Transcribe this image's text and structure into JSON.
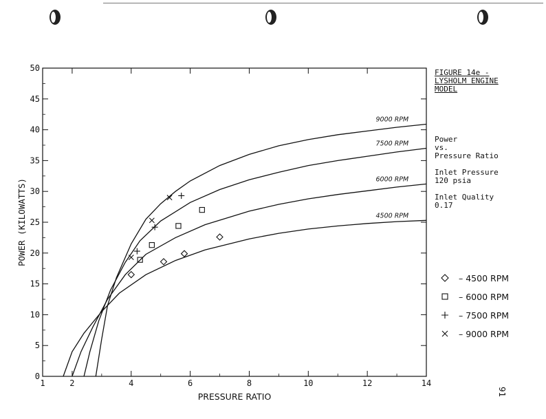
{
  "page": {
    "figure_title": "FIGURE 14e -\nLYSHOLM ENGINE\nMODEL",
    "description": "Power\nvs.\nPressure Ratio",
    "inlet_pressure": "Inlet Pressure\n120 psia",
    "inlet_quality": "Inlet Quality\n0.17",
    "page_number": "91"
  },
  "colors": {
    "ink": "#111111",
    "paper": "#ffffff"
  },
  "chart_data": {
    "type": "line",
    "xlabel": "PRESSURE RATIO",
    "ylabel": "POWER (KILOWATTS)",
    "xlim": [
      1,
      14
    ],
    "ylim": [
      0,
      50
    ],
    "x_ticks": [
      1,
      2,
      4,
      6,
      8,
      10,
      12,
      14
    ],
    "y_ticks": [
      0,
      5,
      10,
      15,
      20,
      25,
      30,
      35,
      40,
      45,
      50
    ],
    "grid": false,
    "curves": [
      {
        "label": "9000 RPM",
        "points": [
          [
            2.8,
            0
          ],
          [
            3.0,
            6
          ],
          [
            3.2,
            11.5
          ],
          [
            3.5,
            16
          ],
          [
            4.0,
            21.5
          ],
          [
            4.5,
            25.5
          ],
          [
            5.0,
            28
          ],
          [
            5.5,
            30
          ],
          [
            6,
            31.7
          ],
          [
            7,
            34.2
          ],
          [
            8,
            36
          ],
          [
            9,
            37.4
          ],
          [
            10,
            38.4
          ],
          [
            11,
            39.2
          ],
          [
            12,
            39.8
          ],
          [
            13,
            40.4
          ],
          [
            14,
            40.9
          ]
        ]
      },
      {
        "label": "7500 RPM",
        "points": [
          [
            2.4,
            0
          ],
          [
            2.6,
            4
          ],
          [
            2.9,
            9
          ],
          [
            3.3,
            14
          ],
          [
            3.8,
            18.5
          ],
          [
            4.3,
            22
          ],
          [
            5,
            25.2
          ],
          [
            6,
            28.2
          ],
          [
            7,
            30.3
          ],
          [
            8,
            31.9
          ],
          [
            9,
            33.1
          ],
          [
            10,
            34.2
          ],
          [
            11,
            35
          ],
          [
            12,
            35.7
          ],
          [
            13,
            36.4
          ],
          [
            14,
            37
          ]
        ]
      },
      {
        "label": "6000 RPM",
        "points": [
          [
            2.0,
            0
          ],
          [
            2.3,
            4
          ],
          [
            2.7,
            8
          ],
          [
            3.2,
            12.5
          ],
          [
            3.8,
            16.5
          ],
          [
            4.5,
            19.8
          ],
          [
            5.5,
            22.5
          ],
          [
            6.5,
            24.6
          ],
          [
            8,
            26.8
          ],
          [
            9,
            27.9
          ],
          [
            10,
            28.8
          ],
          [
            11,
            29.5
          ],
          [
            12,
            30.1
          ],
          [
            13,
            30.7
          ],
          [
            14,
            31.2
          ]
        ]
      },
      {
        "label": "4500 RPM",
        "points": [
          [
            1.7,
            0
          ],
          [
            2.0,
            4
          ],
          [
            2.4,
            7
          ],
          [
            3.0,
            10.5
          ],
          [
            3.6,
            13.5
          ],
          [
            4.5,
            16.5
          ],
          [
            5.5,
            18.8
          ],
          [
            6.5,
            20.5
          ],
          [
            8,
            22.3
          ],
          [
            9,
            23.2
          ],
          [
            10,
            23.9
          ],
          [
            11,
            24.4
          ],
          [
            12,
            24.8
          ],
          [
            13,
            25.1
          ],
          [
            14,
            25.3
          ]
        ]
      }
    ],
    "series": [
      {
        "name": "4500 RPM",
        "marker": "diamond",
        "points": [
          [
            4.0,
            16.5
          ],
          [
            5.1,
            18.6
          ],
          [
            5.8,
            19.9
          ],
          [
            7.0,
            22.6
          ]
        ]
      },
      {
        "name": "6000 RPM",
        "marker": "square",
        "points": [
          [
            4.3,
            18.9
          ],
          [
            4.7,
            21.3
          ],
          [
            5.6,
            24.4
          ],
          [
            6.4,
            27.0
          ]
        ]
      },
      {
        "name": "7500 RPM",
        "marker": "plus",
        "points": [
          [
            4.2,
            20.3
          ],
          [
            4.8,
            24.2
          ],
          [
            5.7,
            29.3
          ]
        ]
      },
      {
        "name": "9000 RPM",
        "marker": "cross",
        "points": [
          [
            4.0,
            19.3
          ],
          [
            4.7,
            25.3
          ],
          [
            5.3,
            29.0
          ]
        ]
      }
    ],
    "legend": "right"
  }
}
